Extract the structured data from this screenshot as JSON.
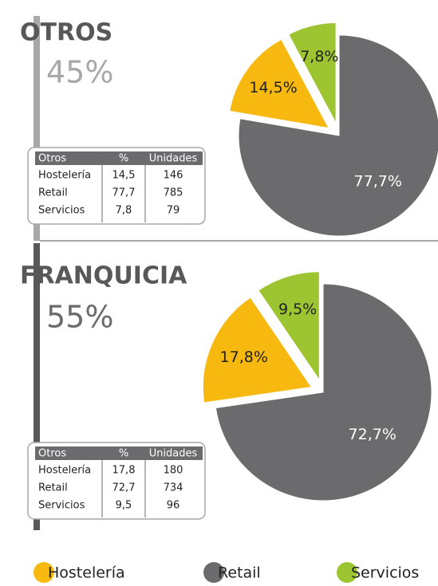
{
  "chart_data": [
    {
      "type": "pie",
      "title": "OTROS",
      "subtitle": "45%",
      "categories": [
        "Hostelería",
        "Retail",
        "Servicios"
      ],
      "values": [
        14.5,
        77.7,
        7.8
      ],
      "value_labels": [
        "14,5%",
        "77,7%",
        "7,8%"
      ],
      "colors": [
        "#f7b90f",
        "#6b6b6e",
        "#9dc431"
      ],
      "table": {
        "header": [
          "Otros",
          "%",
          "Unidades"
        ],
        "rows": [
          [
            "Hostelería",
            "14,5",
            "146"
          ],
          [
            "Retail",
            "77,7",
            "785"
          ],
          [
            "Servicios",
            "7,8",
            "79"
          ]
        ]
      }
    },
    {
      "type": "pie",
      "title": "FRANQUICIA",
      "subtitle": "55%",
      "categories": [
        "Hostelería",
        "Retail",
        "Servicios"
      ],
      "values": [
        17.8,
        72.7,
        9.5
      ],
      "value_labels": [
        "17,8%",
        "72,7%",
        "9,5%"
      ],
      "colors": [
        "#f7b90f",
        "#6b6b6e",
        "#9dc431"
      ],
      "table": {
        "header": [
          "Otros",
          "%",
          "Unidades"
        ],
        "rows": [
          [
            "Hostelería",
            "17,8",
            "180"
          ],
          [
            "Retail",
            "72,7",
            "734"
          ],
          [
            "Servicios",
            "9,5",
            "96"
          ]
        ]
      }
    }
  ]
}
